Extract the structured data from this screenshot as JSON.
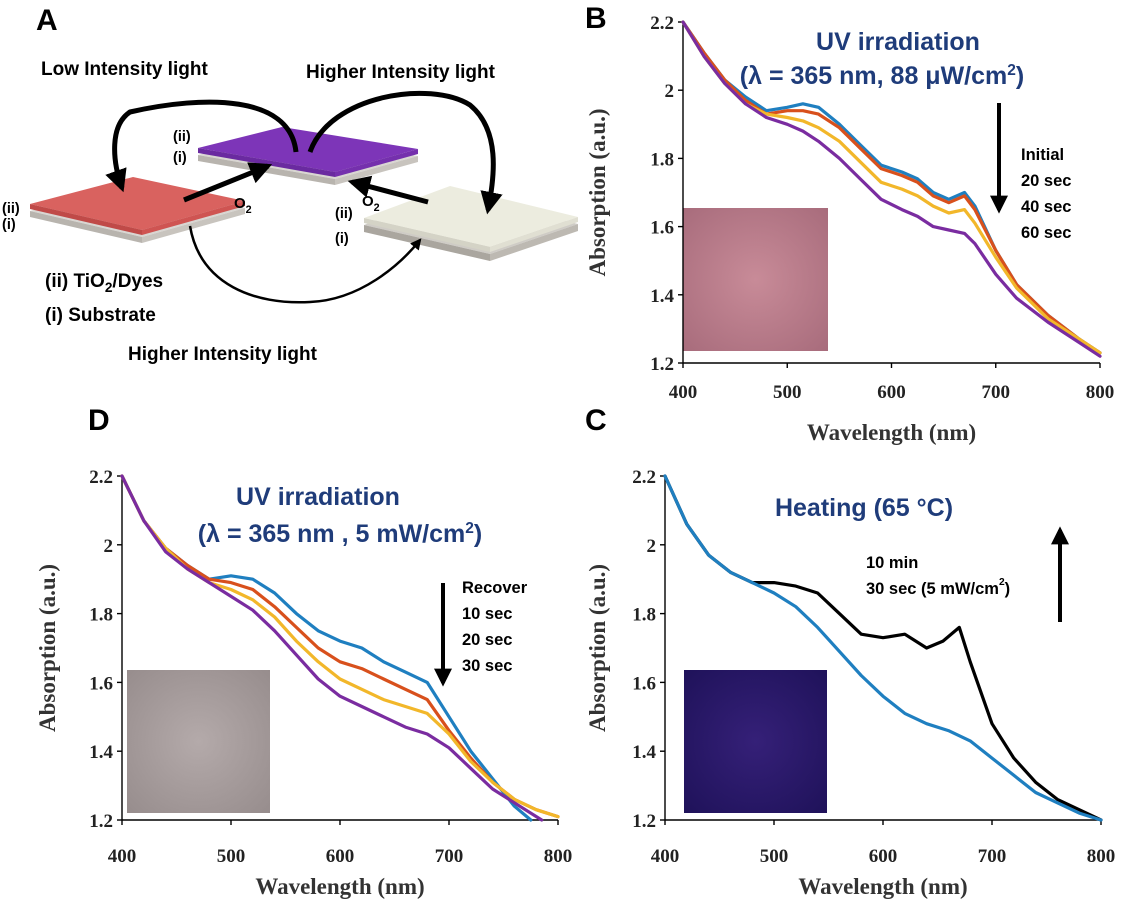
{
  "colors": {
    "blue": "#1f7fc0",
    "orange": "#d8501c",
    "yellow": "#f2b72a",
    "purple": "#7a2ca0",
    "black": "#000000",
    "title_navy": "#1f3c7a",
    "layer_red": "#d9625f",
    "layer_purple": "#7d35b8",
    "layer_white": "#ececdf",
    "swatch_pink": "#b87a88",
    "swatch_gray": "#a69c9c",
    "swatch_navy": "#2a1a6c"
  },
  "diagram": {
    "panel": "A",
    "top_left_label": "Low Intensity light",
    "top_right_label": "Higher Intensity light",
    "bottom_label": "Higher Intensity light",
    "legend_ii": "(ii) TiO2/Dyes",
    "legend_i": "(i) Substrate",
    "layer_ii": "(ii)",
    "layer_i": "(i)",
    "o2": "O2",
    "layer_colors": [
      "red",
      "purple",
      "white"
    ]
  },
  "chart_data": [
    {
      "panel": "B",
      "type": "line",
      "title": "UV irradiation",
      "subtitle": "(λ = 365 nm, 88 μW/cm2)",
      "xlabel": "Wavelength (nm)",
      "ylabel": "Absorption (a.u.)",
      "xlim": [
        400,
        800
      ],
      "ylim": [
        1.2,
        2.2
      ],
      "xticks": [
        "400",
        "500",
        "600",
        "700",
        "800"
      ],
      "yticks": [
        "1.2",
        "1.4",
        "1.6",
        "1.8",
        "2",
        "2.2"
      ],
      "legend_direction": "down",
      "legend": [
        "Initial",
        "20 sec",
        "40 sec",
        "60 sec"
      ],
      "inset_color": "swatch_pink",
      "series": [
        {
          "name": "Initial",
          "color": "blue",
          "x": [
            400,
            420,
            440,
            460,
            480,
            500,
            515,
            530,
            550,
            570,
            590,
            610,
            625,
            640,
            655,
            670,
            680,
            700,
            720,
            750,
            780,
            800
          ],
          "y": [
            2.2,
            2.11,
            2.03,
            1.98,
            1.94,
            1.95,
            1.96,
            1.95,
            1.9,
            1.84,
            1.78,
            1.76,
            1.74,
            1.7,
            1.68,
            1.7,
            1.66,
            1.53,
            1.43,
            1.34,
            1.27,
            1.23
          ]
        },
        {
          "name": "20 sec",
          "color": "orange",
          "x": [
            400,
            420,
            440,
            460,
            480,
            500,
            515,
            530,
            550,
            570,
            590,
            610,
            625,
            640,
            655,
            670,
            680,
            700,
            720,
            750,
            780,
            800
          ],
          "y": [
            2.2,
            2.11,
            2.03,
            1.97,
            1.93,
            1.94,
            1.94,
            1.93,
            1.89,
            1.83,
            1.77,
            1.75,
            1.73,
            1.69,
            1.67,
            1.69,
            1.65,
            1.53,
            1.43,
            1.34,
            1.27,
            1.23
          ]
        },
        {
          "name": "40 sec",
          "color": "yellow",
          "x": [
            400,
            420,
            440,
            460,
            480,
            500,
            515,
            530,
            550,
            570,
            590,
            610,
            625,
            640,
            655,
            670,
            680,
            700,
            720,
            750,
            780,
            800
          ],
          "y": [
            2.2,
            2.1,
            2.02,
            1.96,
            1.93,
            1.92,
            1.91,
            1.89,
            1.85,
            1.79,
            1.73,
            1.71,
            1.69,
            1.66,
            1.64,
            1.65,
            1.61,
            1.51,
            1.42,
            1.33,
            1.27,
            1.23
          ]
        },
        {
          "name": "60 sec",
          "color": "purple",
          "x": [
            400,
            420,
            440,
            460,
            480,
            500,
            515,
            530,
            550,
            570,
            590,
            610,
            625,
            640,
            655,
            670,
            680,
            700,
            720,
            750,
            780,
            800
          ],
          "y": [
            2.2,
            2.1,
            2.02,
            1.96,
            1.92,
            1.9,
            1.88,
            1.85,
            1.8,
            1.74,
            1.68,
            1.65,
            1.63,
            1.6,
            1.59,
            1.58,
            1.55,
            1.46,
            1.39,
            1.32,
            1.26,
            1.22
          ]
        }
      ]
    },
    {
      "panel": "D",
      "type": "line",
      "title": "UV irradiation",
      "subtitle": "(λ = 365 nm , 5 mW/cm2)",
      "xlabel": "Wavelength (nm)",
      "ylabel": "Absorption (a.u.)",
      "xlim": [
        400,
        800
      ],
      "ylim": [
        1.2,
        2.2
      ],
      "xticks": [
        "400",
        "500",
        "600",
        "700",
        "800"
      ],
      "yticks": [
        "1.2",
        "1.4",
        "1.6",
        "1.8",
        "2",
        "2.2"
      ],
      "legend_direction": "down",
      "legend": [
        "Recover",
        "10 sec",
        "20 sec",
        "30 sec"
      ],
      "inset_color": "swatch_gray",
      "series": [
        {
          "name": "Recover",
          "color": "blue",
          "x": [
            400,
            420,
            440,
            460,
            480,
            500,
            520,
            540,
            560,
            580,
            600,
            620,
            640,
            660,
            680,
            700,
            720,
            740,
            760,
            775
          ],
          "y": [
            2.2,
            2.07,
            1.99,
            1.94,
            1.9,
            1.91,
            1.9,
            1.86,
            1.8,
            1.75,
            1.72,
            1.7,
            1.66,
            1.63,
            1.6,
            1.5,
            1.4,
            1.32,
            1.24,
            1.2
          ]
        },
        {
          "name": "10 sec",
          "color": "orange",
          "x": [
            400,
            420,
            440,
            460,
            480,
            500,
            520,
            540,
            560,
            580,
            600,
            620,
            640,
            660,
            680,
            700,
            720,
            740,
            760,
            780,
            800
          ],
          "y": [
            2.2,
            2.07,
            1.99,
            1.94,
            1.9,
            1.89,
            1.87,
            1.82,
            1.76,
            1.7,
            1.66,
            1.64,
            1.61,
            1.58,
            1.55,
            1.46,
            1.38,
            1.31,
            1.26,
            1.23,
            1.21
          ]
        },
        {
          "name": "20 sec",
          "color": "yellow",
          "x": [
            400,
            420,
            440,
            460,
            480,
            500,
            520,
            540,
            560,
            580,
            600,
            620,
            640,
            660,
            680,
            700,
            720,
            740,
            760,
            780,
            800
          ],
          "y": [
            2.2,
            2.07,
            1.99,
            1.93,
            1.89,
            1.87,
            1.84,
            1.79,
            1.72,
            1.66,
            1.61,
            1.58,
            1.55,
            1.53,
            1.51,
            1.45,
            1.37,
            1.31,
            1.26,
            1.23,
            1.21
          ]
        },
        {
          "name": "30 sec",
          "color": "purple",
          "x": [
            400,
            420,
            440,
            460,
            480,
            500,
            520,
            540,
            560,
            580,
            600,
            620,
            640,
            660,
            680,
            700,
            720,
            740,
            760,
            785
          ],
          "y": [
            2.2,
            2.07,
            1.98,
            1.93,
            1.89,
            1.85,
            1.81,
            1.75,
            1.68,
            1.61,
            1.56,
            1.53,
            1.5,
            1.47,
            1.45,
            1.41,
            1.35,
            1.29,
            1.25,
            1.2
          ]
        }
      ]
    },
    {
      "panel": "C",
      "type": "line",
      "title": "Heating (65 °C)",
      "xlabel": "Wavelength (nm)",
      "ylabel": "Absorption (a.u.)",
      "xlim": [
        400,
        800
      ],
      "ylim": [
        1.2,
        2.2
      ],
      "xticks": [
        "400",
        "500",
        "600",
        "700",
        "800"
      ],
      "yticks": [
        "1.2",
        "1.4",
        "1.6",
        "1.8",
        "2",
        "2.2"
      ],
      "legend_direction": "up",
      "legend": [
        "10 min",
        "30 sec (5 mW/cm2)"
      ],
      "inset_color": "swatch_navy",
      "series": [
        {
          "name": "10 min",
          "color": "black",
          "x": [
            400,
            420,
            440,
            460,
            480,
            500,
            520,
            540,
            560,
            580,
            600,
            620,
            640,
            655,
            670,
            680,
            700,
            720,
            740,
            760,
            780,
            800
          ],
          "y": [
            2.2,
            2.06,
            1.97,
            1.92,
            1.89,
            1.89,
            1.88,
            1.86,
            1.8,
            1.74,
            1.73,
            1.74,
            1.7,
            1.72,
            1.76,
            1.66,
            1.48,
            1.38,
            1.31,
            1.26,
            1.23,
            1.2
          ]
        },
        {
          "name": "30 sec (5 mW/cm2)",
          "color": "blue",
          "x": [
            400,
            420,
            440,
            460,
            480,
            500,
            520,
            540,
            560,
            580,
            600,
            620,
            640,
            660,
            680,
            700,
            720,
            740,
            760,
            780,
            800
          ],
          "y": [
            2.2,
            2.06,
            1.97,
            1.92,
            1.89,
            1.86,
            1.82,
            1.76,
            1.69,
            1.62,
            1.56,
            1.51,
            1.48,
            1.46,
            1.43,
            1.38,
            1.33,
            1.28,
            1.25,
            1.22,
            1.2
          ]
        }
      ]
    }
  ]
}
